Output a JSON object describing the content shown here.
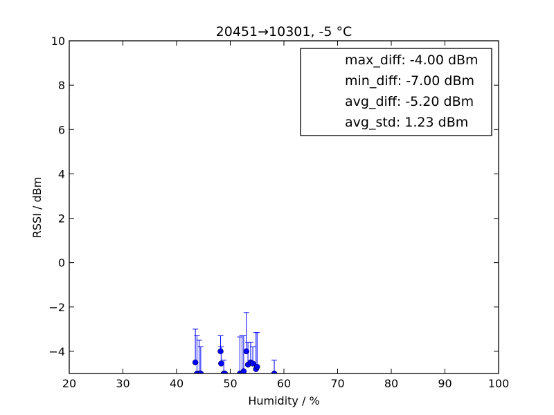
{
  "chart_data": {
    "type": "scatter",
    "title": "20451→10301, -5 °C",
    "xlabel": "Humidity / %",
    "ylabel": "RSSI / dBm",
    "xlim": [
      20,
      100
    ],
    "ylim": [
      -5,
      10
    ],
    "x_ticks": [
      "20",
      "30",
      "40",
      "50",
      "60",
      "70",
      "80",
      "90",
      "100"
    ],
    "y_ticks": [
      "−4",
      "−2",
      "0",
      "2",
      "4",
      "6",
      "8",
      "10"
    ],
    "grid": false,
    "legend_position": "top-right",
    "legend": [
      "max_diff: -4.00 dBm",
      "min_diff: -7.00 dBm",
      "avg_diff: -5.20 dBm",
      "avg_std: 1.23 dBm"
    ],
    "marker_color": "#0000ff",
    "points": [
      {
        "x": 43.5,
        "y": -4.5,
        "err": 1.5
      },
      {
        "x": 43.8,
        "y": -5.0,
        "err": 1.7
      },
      {
        "x": 44.2,
        "y": -5.0,
        "err": 1.5
      },
      {
        "x": 44.5,
        "y": -5.0,
        "err": 1.2
      },
      {
        "x": 48.2,
        "y": -4.0,
        "err": 0.7
      },
      {
        "x": 48.3,
        "y": -4.55,
        "err": 0.75
      },
      {
        "x": 48.8,
        "y": -5.0,
        "err": 0.6
      },
      {
        "x": 49.0,
        "y": -5.0,
        "err": 0.0
      },
      {
        "x": 51.8,
        "y": -5.0,
        "err": 1.65
      },
      {
        "x": 52.2,
        "y": -5.0,
        "err": 1.7
      },
      {
        "x": 52.5,
        "y": -4.9,
        "err": 1.6
      },
      {
        "x": 53.0,
        "y": -4.0,
        "err": 1.75
      },
      {
        "x": 53.3,
        "y": -4.6,
        "err": 1.0
      },
      {
        "x": 53.8,
        "y": -4.5,
        "err": 0.9
      },
      {
        "x": 54.2,
        "y": -4.55,
        "err": 0.75
      },
      {
        "x": 54.8,
        "y": -4.8,
        "err": 1.65
      },
      {
        "x": 55.0,
        "y": -4.7,
        "err": 1.55
      },
      {
        "x": 58.2,
        "y": -5.0,
        "err": 0.6
      }
    ]
  }
}
